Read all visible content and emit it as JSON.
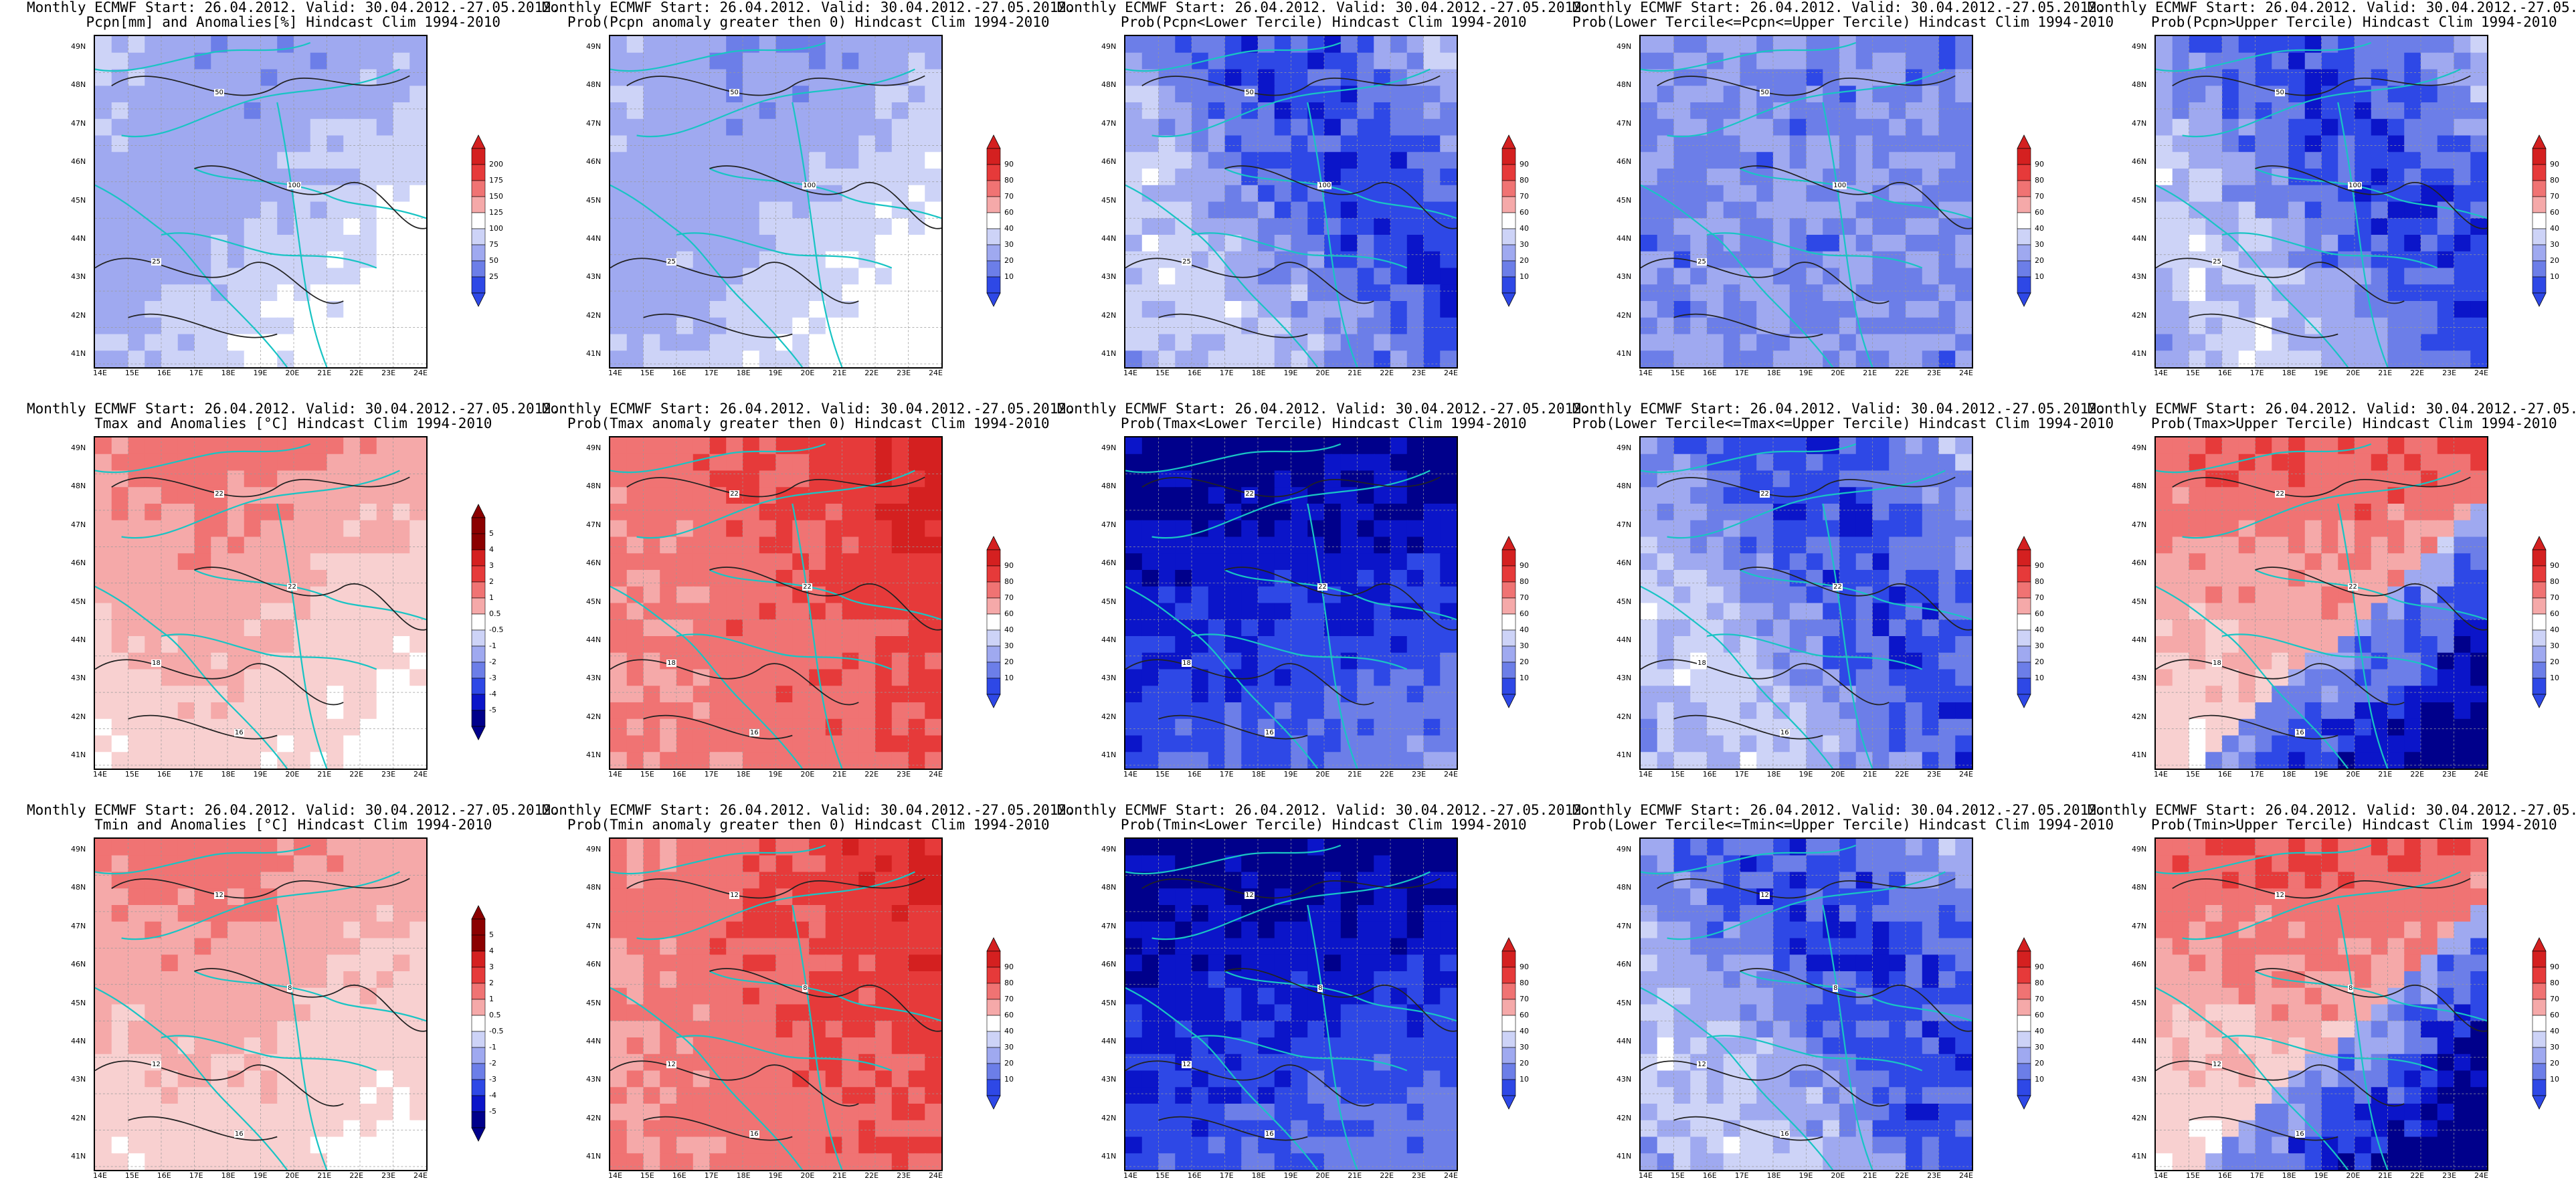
{
  "header_line": "Monthly ECMWF Start: 26.04.2012. Valid: 30.04.2012.-27.05.2012.",
  "lat_labels": [
    "49N",
    "48N",
    "47N",
    "46N",
    "45N",
    "44N",
    "43N",
    "42N",
    "41N"
  ],
  "lon_labels": [
    "14E",
    "15E",
    "16E",
    "17E",
    "18E",
    "19E",
    "20E",
    "21E",
    "22E",
    "23E",
    "24E"
  ],
  "colors": {
    "coast": "#19c4c4",
    "contour": "#222222",
    "blue_scale": [
      "#00008b",
      "#0b15c9",
      "#2e48e6",
      "#6c7ee8",
      "#9fa9f0",
      "#cdd3f7",
      "#ffffff"
    ],
    "red_scale": [
      "#ffffff",
      "#f8d0d0",
      "#f5a9a9",
      "#f07373",
      "#e63a3a",
      "#d42020",
      "#8b0000"
    ]
  },
  "panels": [
    {
      "id": "pcpn-anom",
      "subtitle": "Pcpn[mm] and Anomalies[%] Hindcast Clim 1994-2010",
      "scale": "anom_pcpn",
      "ticks": [
        "200",
        "175",
        "150",
        "125",
        "100",
        "75",
        "50",
        "25"
      ],
      "bias": "blue-light",
      "contours": [
        "50",
        "25",
        "100"
      ]
    },
    {
      "id": "pcpn-pos",
      "subtitle": "Prob(Pcpn anomaly greater then 0) Hindcast Clim 1994-2010",
      "scale": "prob",
      "ticks": [
        "90",
        "80",
        "70",
        "60",
        "40",
        "30",
        "20",
        "10"
      ],
      "bias": "blue-light",
      "contours": [
        "50",
        "25",
        "100"
      ]
    },
    {
      "id": "pcpn-lower",
      "subtitle": "Prob(Pcpn<Lower Tercile) Hindcast Clim 1994-2010",
      "scale": "prob",
      "ticks": [
        "90",
        "80",
        "70",
        "60",
        "40",
        "30",
        "20",
        "10"
      ],
      "bias": "blue-mid",
      "contours": [
        "50",
        "25",
        "100"
      ]
    },
    {
      "id": "pcpn-middle",
      "subtitle": "Prob(Lower Tercile<=Pcpn<=Upper Tercile) Hindcast Clim 1994-2010",
      "scale": "prob",
      "ticks": [
        "90",
        "80",
        "70",
        "60",
        "40",
        "30",
        "20",
        "10"
      ],
      "bias": "blue-patchy",
      "contours": [
        "50",
        "25",
        "100"
      ]
    },
    {
      "id": "pcpn-upper",
      "subtitle": "Prob(Pcpn>Upper Tercile) Hindcast Clim 1994-2010",
      "scale": "prob",
      "ticks": [
        "90",
        "80",
        "70",
        "60",
        "40",
        "30",
        "20",
        "10"
      ],
      "bias": "blue-mid",
      "contours": [
        "50",
        "25",
        "100"
      ]
    },
    {
      "id": "tmax-anom",
      "subtitle": "Tmax and Anomalies [°C] Hindcast Clim 1994-2010",
      "scale": "anom_t",
      "ticks": [
        "5",
        "4",
        "3",
        "2",
        "1",
        "0.5",
        "-0.5",
        "-1",
        "-2",
        "-3",
        "-4",
        "-5"
      ],
      "bias": "red-light",
      "contours": [
        "22",
        "18",
        "22",
        "16"
      ]
    },
    {
      "id": "tmax-pos",
      "subtitle": "Prob(Tmax anomaly greater then 0) Hindcast Clim 1994-2010",
      "scale": "prob",
      "ticks": [
        "90",
        "80",
        "70",
        "60",
        "40",
        "30",
        "20",
        "10"
      ],
      "bias": "red-strong",
      "contours": [
        "22",
        "18",
        "22",
        "16"
      ]
    },
    {
      "id": "tmax-lower",
      "subtitle": "Prob(Tmax<Lower Tercile) Hindcast Clim 1994-2010",
      "scale": "prob",
      "ticks": [
        "90",
        "80",
        "70",
        "60",
        "40",
        "30",
        "20",
        "10"
      ],
      "bias": "blue-strong",
      "contours": [
        "22",
        "18",
        "22",
        "16"
      ]
    },
    {
      "id": "tmax-middle",
      "subtitle": "Prob(Lower Tercile<=Tmax<=Upper Tercile) Hindcast Clim 1994-2010",
      "scale": "prob",
      "ticks": [
        "90",
        "80",
        "70",
        "60",
        "40",
        "30",
        "20",
        "10"
      ],
      "bias": "blue-mid",
      "contours": [
        "22",
        "18",
        "22",
        "16"
      ]
    },
    {
      "id": "tmax-upper",
      "subtitle": "Prob(Tmax>Upper Tercile) Hindcast Clim 1994-2010",
      "scale": "prob",
      "ticks": [
        "90",
        "80",
        "70",
        "60",
        "40",
        "30",
        "20",
        "10"
      ],
      "bias": "mixed",
      "contours": [
        "22",
        "18",
        "22",
        "16"
      ]
    },
    {
      "id": "tmin-anom",
      "subtitle": "Tmin and Anomalies [°C] Hindcast Clim 1994-2010",
      "scale": "anom_t",
      "ticks": [
        "5",
        "4",
        "3",
        "2",
        "1",
        "0.5",
        "-0.5",
        "-1",
        "-2",
        "-3",
        "-4",
        "-5"
      ],
      "bias": "red-light",
      "contours": [
        "12",
        "12",
        "8",
        "16"
      ]
    },
    {
      "id": "tmin-pos",
      "subtitle": "Prob(Tmin anomaly greater then 0) Hindcast Clim 1994-2010",
      "scale": "prob",
      "ticks": [
        "90",
        "80",
        "70",
        "60",
        "40",
        "30",
        "20",
        "10"
      ],
      "bias": "red-strong",
      "contours": [
        "12",
        "12",
        "8",
        "16"
      ]
    },
    {
      "id": "tmin-lower",
      "subtitle": "Prob(Tmin<Lower Tercile) Hindcast Clim 1994-2010",
      "scale": "prob",
      "ticks": [
        "90",
        "80",
        "70",
        "60",
        "40",
        "30",
        "20",
        "10"
      ],
      "bias": "blue-strong",
      "contours": [
        "12",
        "12",
        "8",
        "16"
      ]
    },
    {
      "id": "tmin-middle",
      "subtitle": "Prob(Lower Tercile<=Tmin<=Upper Tercile) Hindcast Clim 1994-2010",
      "scale": "prob",
      "ticks": [
        "90",
        "80",
        "70",
        "60",
        "40",
        "30",
        "20",
        "10"
      ],
      "bias": "blue-mid",
      "contours": [
        "12",
        "12",
        "8",
        "16"
      ]
    },
    {
      "id": "tmin-upper",
      "subtitle": "Prob(Tmin>Upper Tercile) Hindcast Clim 1994-2010",
      "scale": "prob",
      "ticks": [
        "90",
        "80",
        "70",
        "60",
        "40",
        "30",
        "20",
        "10"
      ],
      "bias": "mixed",
      "contours": [
        "12",
        "12",
        "8",
        "16"
      ]
    }
  ]
}
